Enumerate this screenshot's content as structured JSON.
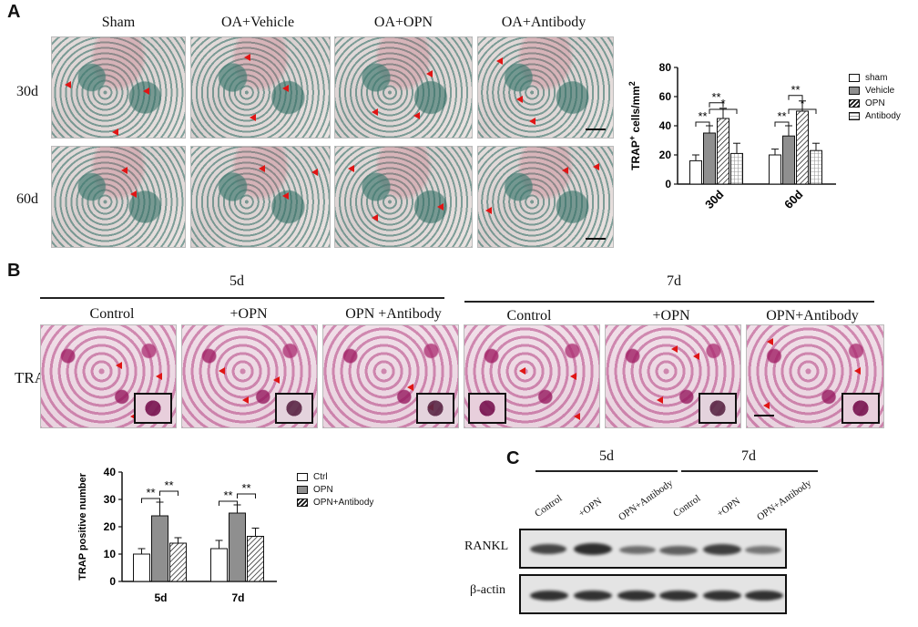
{
  "panel_a": {
    "letter": "A",
    "columns": [
      "Sham",
      "OA+Vehicle",
      "OA+OPN",
      "OA+Antibody"
    ],
    "rows": [
      "30d",
      "60d"
    ]
  },
  "panel_b": {
    "letter": "B",
    "group_5d": "5d",
    "group_7d": "7d",
    "columns": [
      "Control",
      "+OPN",
      "OPN +Antibody",
      "Control",
      "+OPN",
      "OPN+Antibody"
    ],
    "row_label": "TRAP"
  },
  "panel_c": {
    "letter": "C",
    "group_5d": "5d",
    "group_7d": "7d",
    "lanes": [
      "Control",
      "+OPN",
      "OPN+Antibody",
      "Control",
      "+OPN",
      "OPN+Antibody"
    ],
    "rows": [
      "RANKL",
      "β-actin"
    ]
  },
  "chart_data": [
    {
      "type": "bar",
      "ylabel": "TRAP+ cells/mm2",
      "ylabel_main": "TRAP",
      "ylabel_sup": "+",
      "ylabel_rest": " cells/mm",
      "ylabel_sup2": "2",
      "ylim": [
        0,
        80
      ],
      "yticks": [
        "0",
        "20",
        "40",
        "60",
        "80"
      ],
      "categories": [
        "30d",
        "60d"
      ],
      "series": [
        {
          "name": "sham",
          "values": [
            16,
            20
          ],
          "errors": [
            4,
            4
          ]
        },
        {
          "name": "Vehicle",
          "values": [
            35,
            33
          ],
          "errors": [
            5,
            7
          ]
        },
        {
          "name": "OPN",
          "values": [
            45,
            50
          ],
          "errors": [
            7,
            7
          ]
        },
        {
          "name": "Antibody",
          "values": [
            21,
            23
          ],
          "errors": [
            7,
            5
          ]
        }
      ],
      "annotations": [
        "**",
        "**",
        "*",
        "**",
        "**",
        "*"
      ]
    },
    {
      "type": "bar",
      "ylabel": "TRAP positive number",
      "ylim": [
        0,
        40
      ],
      "yticks": [
        "0",
        "10",
        "20",
        "30",
        "40"
      ],
      "categories": [
        "5d",
        "7d"
      ],
      "series": [
        {
          "name": "Ctrl",
          "values": [
            10,
            12
          ],
          "errors": [
            2,
            3
          ]
        },
        {
          "name": "OPN",
          "values": [
            24,
            25
          ],
          "errors": [
            5,
            3
          ]
        },
        {
          "name": "OPN+Antibody",
          "values": [
            14,
            16.5
          ],
          "errors": [
            2,
            3
          ]
        }
      ],
      "annotations": [
        "**",
        "**",
        "**",
        "**"
      ]
    }
  ]
}
